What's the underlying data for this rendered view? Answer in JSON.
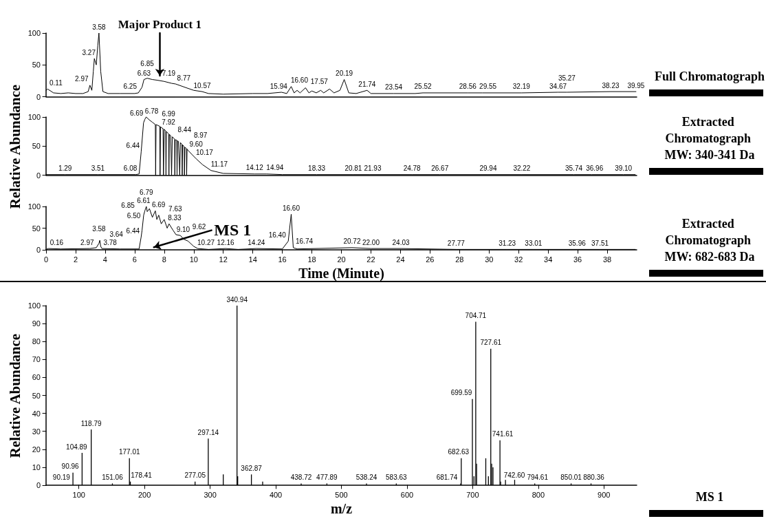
{
  "chart_data": [
    {
      "type": "line",
      "color": "#000000",
      "grid": false,
      "marker": "none",
      "line_style": "solid",
      "tick_labels": "y",
      "xlim": [
        0,
        40
      ],
      "ylim": [
        0,
        100
      ],
      "yticks": [
        0,
        50,
        100
      ],
      "x": [
        0,
        0.11,
        0.5,
        1,
        1.5,
        2,
        2.5,
        2.85,
        2.97,
        3.1,
        3.2,
        3.27,
        3.4,
        3.5,
        3.58,
        3.7,
        3.85,
        4.2,
        5,
        6,
        6.25,
        6.5,
        6.63,
        6.85,
        7.19,
        7.5,
        8,
        8.5,
        8.77,
        9.5,
        10,
        10.57,
        11,
        12,
        14,
        15,
        15.94,
        16.3,
        16.6,
        16.8,
        17,
        17.2,
        17.57,
        17.8,
        18,
        18.3,
        18.6,
        18.8,
        19.2,
        19.5,
        19.9,
        20.19,
        20.5,
        21,
        21.74,
        22,
        23.54,
        25,
        25.52,
        28.56,
        29.55,
        32.19,
        34.67,
        35.27,
        38.23,
        39.95
      ],
      "values": [
        10,
        12,
        6,
        5,
        6,
        5,
        5,
        8,
        18,
        10,
        40,
        60,
        50,
        80,
        100,
        40,
        8,
        5,
        5,
        5,
        6,
        15,
        27,
        29,
        27,
        26,
        24,
        21,
        20,
        14,
        10,
        8,
        5,
        4,
        5,
        5,
        7,
        5,
        16,
        6,
        10,
        6,
        14,
        6,
        9,
        6,
        10,
        6,
        12,
        6,
        10,
        27,
        6,
        5,
        10,
        5,
        5,
        5,
        6,
        6,
        6,
        6,
        7,
        7,
        8,
        8
      ],
      "annotations": [
        "Full Chromatograph",
        "Major Product 1",
        {
          "text": "0.11",
          "x": 0.11,
          "y": 12
        },
        {
          "text": "2.97",
          "x": 2.97,
          "y": 18
        },
        {
          "text": "3.27",
          "x": 3.27,
          "y": 60
        },
        {
          "text": "3.58",
          "x": 3.58,
          "y": 100
        },
        {
          "text": "6.25",
          "x": 6.25,
          "y": 6
        },
        {
          "text": "6.63",
          "x": 6.63,
          "y": 27
        },
        {
          "text": "6.85",
          "x": 6.85,
          "y": 29
        },
        {
          "text": "7.19",
          "x": 7.19,
          "y": 27
        },
        {
          "text": "8.77",
          "x": 8.77,
          "y": 20
        },
        {
          "text": "10.57",
          "x": 10.57,
          "y": 8
        },
        {
          "text": "15.94",
          "x": 15.94,
          "y": 7
        },
        {
          "text": "16.60",
          "x": 16.6,
          "y": 16
        },
        {
          "text": "17.57",
          "x": 17.57,
          "y": 14
        },
        {
          "text": "20.19",
          "x": 20.19,
          "y": 27
        },
        {
          "text": "21.74",
          "x": 21.74,
          "y": 10
        },
        {
          "text": "23.54",
          "x": 23.54,
          "y": 5
        },
        {
          "text": "25.52",
          "x": 25.52,
          "y": 6
        },
        {
          "text": "28.56",
          "x": 28.56,
          "y": 6
        },
        {
          "text": "29.55",
          "x": 29.55,
          "y": 6
        },
        {
          "text": "32.19",
          "x": 32.19,
          "y": 6
        },
        {
          "text": "34.67",
          "x": 34.67,
          "y": 7
        },
        {
          "text": "35.27",
          "x": 35.27,
          "y": 7
        },
        {
          "text": "38.23",
          "x": 38.23,
          "y": 8
        },
        {
          "text": "39.95",
          "x": 39.95,
          "y": 8
        }
      ]
    },
    {
      "type": "line",
      "ylabel": "Relative Abundance",
      "color": "#000000",
      "grid": false,
      "marker": "none",
      "line_style": "solid",
      "tick_labels": "y",
      "xlim": [
        0,
        40
      ],
      "ylim": [
        0,
        100
      ],
      "yticks": [
        0,
        50,
        100
      ],
      "x": [
        0,
        1.29,
        3.51,
        6.08,
        6.3,
        6.44,
        6.6,
        6.69,
        6.78,
        6.99,
        7.2,
        7.4,
        7.42,
        7.45,
        7.7,
        7.72,
        7.75,
        7.92,
        7.95,
        8.0,
        8.1,
        8.12,
        8.15,
        8.3,
        8.32,
        8.35,
        8.44,
        8.5,
        8.55,
        8.7,
        8.72,
        8.75,
        8.85,
        8.87,
        8.9,
        8.97,
        9.05,
        9.1,
        9.2,
        9.22,
        9.25,
        9.35,
        9.37,
        9.4,
        9.5,
        9.52,
        9.55,
        9.6,
        9.9,
        10.17,
        10.6,
        11.17,
        12,
        14.12,
        14.94,
        16,
        18.33,
        20.81,
        21.93,
        24.78,
        26.67,
        29.94,
        32.22,
        35.74,
        36.96,
        39.1,
        39.9
      ],
      "values": [
        1,
        1,
        1,
        1,
        2,
        40,
        90,
        96,
        100,
        95,
        91,
        87,
        0,
        87,
        84,
        0,
        83,
        80,
        0,
        79,
        76,
        0,
        75,
        71,
        0,
        70,
        68,
        0,
        66,
        62,
        0,
        61,
        60,
        0,
        59,
        58,
        0,
        56,
        53,
        0,
        52,
        49,
        0,
        48,
        46,
        0,
        45,
        43,
        35,
        28,
        18,
        8,
        3,
        2,
        2,
        1,
        1,
        1,
        1,
        1,
        1,
        1,
        1,
        1,
        1,
        1,
        1
      ],
      "annotations": [
        "Extracted Chromatograph MW: 340-341 Da",
        {
          "text": "1.29",
          "x": 1.29,
          "y": 1
        },
        {
          "text": "3.51",
          "x": 3.51,
          "y": 1
        },
        {
          "text": "6.08",
          "x": 6.08,
          "y": 1
        },
        {
          "text": "6.44",
          "x": 6.44,
          "y": 40
        },
        {
          "text": "6.69",
          "x": 6.69,
          "y": 96
        },
        {
          "text": "6.78",
          "x": 6.78,
          "y": 100
        },
        {
          "text": "6.99",
          "x": 6.99,
          "y": 95
        },
        {
          "text": "7.92",
          "x": 7.92,
          "y": 80
        },
        {
          "text": "8.44",
          "x": 8.44,
          "y": 68
        },
        {
          "text": "8.97",
          "x": 8.97,
          "y": 58
        },
        {
          "text": "9.60",
          "x": 9.6,
          "y": 43
        },
        {
          "text": "10.17",
          "x": 10.17,
          "y": 28
        },
        {
          "text": "11.17",
          "x": 11.17,
          "y": 8
        },
        {
          "text": "14.12",
          "x": 14.12,
          "y": 2
        },
        {
          "text": "14.94",
          "x": 14.94,
          "y": 2
        },
        {
          "text": "18.33",
          "x": 18.33,
          "y": 1
        },
        {
          "text": "20.81",
          "x": 20.81,
          "y": 1
        },
        {
          "text": "21.93",
          "x": 21.93,
          "y": 1
        },
        {
          "text": "24.78",
          "x": 24.78,
          "y": 1
        },
        {
          "text": "26.67",
          "x": 26.67,
          "y": 1
        },
        {
          "text": "29.94",
          "x": 29.94,
          "y": 1
        },
        {
          "text": "32.22",
          "x": 32.22,
          "y": 1
        },
        {
          "text": "35.74",
          "x": 35.74,
          "y": 1
        },
        {
          "text": "36.96",
          "x": 36.96,
          "y": 1
        },
        {
          "text": "39.10",
          "x": 39.1,
          "y": 1
        }
      ]
    },
    {
      "type": "line",
      "xlabel": "Time (Minute)",
      "color": "#000000",
      "grid": false,
      "marker": "none",
      "line_style": "solid",
      "xlim": [
        0,
        40
      ],
      "xticks": [
        0,
        2,
        4,
        6,
        8,
        10,
        12,
        14,
        16,
        18,
        20,
        22,
        24,
        26,
        28,
        30,
        32,
        34,
        36,
        38
      ],
      "ylim": [
        0,
        100
      ],
      "yticks": [
        0,
        50,
        100
      ],
      "x": [
        0,
        0.16,
        1,
        2.97,
        3.4,
        3.58,
        3.64,
        3.7,
        3.78,
        5,
        6.3,
        6.44,
        6.5,
        6.61,
        6.69,
        6.79,
        6.85,
        7.0,
        7.2,
        7.4,
        7.5,
        7.63,
        7.8,
        8.0,
        8.2,
        8.33,
        8.6,
        8.8,
        9.1,
        9.3,
        9.62,
        10.0,
        10.27,
        11,
        12.16,
        13,
        14.24,
        16,
        16.4,
        16.6,
        16.74,
        17,
        20.72,
        22,
        24.03,
        27.77,
        31.23,
        33.01,
        35.96,
        37.51,
        39.9
      ],
      "values": [
        1,
        3,
        2,
        3,
        5,
        15,
        22,
        8,
        3,
        2,
        2,
        30,
        45,
        80,
        90,
        100,
        88,
        95,
        75,
        90,
        70,
        80,
        60,
        70,
        50,
        60,
        45,
        35,
        33,
        25,
        20,
        8,
        3,
        1,
        3,
        1,
        3,
        2,
        20,
        82,
        5,
        2,
        5,
        3,
        3,
        1,
        1,
        1,
        1,
        1,
        1
      ],
      "annotations": [
        "Extracted Chromatograph MW: 682-683 Da",
        "MS 1",
        {
          "text": "0.16",
          "x": 0.16,
          "y": 3
        },
        {
          "text": "2.97",
          "x": 2.97,
          "y": 3
        },
        {
          "text": "3.58",
          "x": 3.58,
          "y": 15
        },
        {
          "text": "3.64",
          "x": 3.64,
          "y": 22
        },
        {
          "text": "3.78",
          "x": 3.78,
          "y": 3
        },
        {
          "text": "6.44",
          "x": 6.44,
          "y": 30
        },
        {
          "text": "6.50",
          "x": 6.5,
          "y": 45
        },
        {
          "text": "6.61",
          "x": 6.61,
          "y": 80
        },
        {
          "text": "6.69",
          "x": 6.69,
          "y": 90
        },
        {
          "text": "6.79",
          "x": 6.79,
          "y": 100
        },
        {
          "text": "6.85",
          "x": 6.85,
          "y": 88
        },
        {
          "text": "7.63",
          "x": 7.63,
          "y": 80
        },
        {
          "text": "8.33",
          "x": 8.33,
          "y": 60
        },
        {
          "text": "9.10",
          "x": 9.1,
          "y": 33
        },
        {
          "text": "9.62",
          "x": 9.62,
          "y": 20
        },
        {
          "text": "10.27",
          "x": 10.27,
          "y": 3
        },
        {
          "text": "12.16",
          "x": 12.16,
          "y": 3
        },
        {
          "text": "14.24",
          "x": 14.24,
          "y": 3
        },
        {
          "text": "16.40",
          "x": 16.4,
          "y": 20
        },
        {
          "text": "16.60",
          "x": 16.6,
          "y": 82
        },
        {
          "text": "16.74",
          "x": 16.74,
          "y": 5
        },
        {
          "text": "20.72",
          "x": 20.72,
          "y": 5
        },
        {
          "text": "22.00",
          "x": 22,
          "y": 3
        },
        {
          "text": "24.03",
          "x": 24.03,
          "y": 3
        },
        {
          "text": "27.77",
          "x": 27.77,
          "y": 1
        },
        {
          "text": "31.23",
          "x": 31.23,
          "y": 1
        },
        {
          "text": "33.01",
          "x": 33.01,
          "y": 1
        },
        {
          "text": "35.96",
          "x": 35.96,
          "y": 1
        },
        {
          "text": "37.51",
          "x": 37.51,
          "y": 1
        }
      ]
    },
    {
      "type": "bar",
      "xlabel": "m/z",
      "ylabel": "Relative Abundance",
      "color": "#000000",
      "grid": false,
      "xlim": [
        50,
        950
      ],
      "xticks": [
        100,
        200,
        300,
        400,
        500,
        600,
        700,
        800,
        900
      ],
      "ylim": [
        0,
        100
      ],
      "yticks": [
        0,
        10,
        20,
        30,
        40,
        50,
        60,
        70,
        80,
        90,
        100
      ],
      "x": [
        90.96,
        104.89,
        118.79,
        151.06,
        177.01,
        178.41,
        277.05,
        297.14,
        320,
        340.94,
        342,
        362.87,
        380,
        438.72,
        477.89,
        538.24,
        583.63,
        681.74,
        682.63,
        699.59,
        702,
        704.71,
        706,
        720,
        724,
        727.61,
        729,
        731,
        741.61,
        742.6,
        750,
        764,
        794.61,
        850.01,
        880.36
      ],
      "values": [
        7,
        18,
        31,
        1,
        15,
        2,
        2,
        26,
        6,
        100,
        5,
        6,
        2,
        1,
        1,
        1,
        1,
        1,
        15,
        48,
        5,
        91,
        12,
        15,
        5,
        76,
        12,
        10,
        25,
        2,
        3,
        3,
        1,
        1,
        1
      ],
      "annotations": [
        "MS 1",
        {
          "text": "90.19",
          "x": 90.19,
          "y": 1
        },
        {
          "text": "90.96",
          "x": 90.96,
          "y": 7
        },
        {
          "text": "104.89",
          "x": 104.89,
          "y": 18
        },
        {
          "text": "118.79",
          "x": 118.79,
          "y": 31
        },
        {
          "text": "151.06",
          "x": 151.06,
          "y": 1
        },
        {
          "text": "177.01",
          "x": 177.01,
          "y": 15
        },
        {
          "text": "178.41",
          "x": 178.41,
          "y": 2
        },
        {
          "text": "277.05",
          "x": 277.05,
          "y": 2
        },
        {
          "text": "297.14",
          "x": 297.14,
          "y": 26
        },
        {
          "text": "340.94",
          "x": 340.94,
          "y": 100
        },
        {
          "text": "362.87",
          "x": 362.87,
          "y": 6
        },
        {
          "text": "438.72",
          "x": 438.72,
          "y": 1
        },
        {
          "text": "477.89",
          "x": 477.89,
          "y": 1
        },
        {
          "text": "538.24",
          "x": 538.24,
          "y": 1
        },
        {
          "text": "583.63",
          "x": 583.63,
          "y": 1
        },
        {
          "text": "681.74",
          "x": 681.74,
          "y": 1
        },
        {
          "text": "682.63",
          "x": 682.63,
          "y": 15
        },
        {
          "text": "699.59",
          "x": 699.59,
          "y": 48
        },
        {
          "text": "704.71",
          "x": 704.71,
          "y": 91
        },
        {
          "text": "727.61",
          "x": 727.61,
          "y": 76
        },
        {
          "text": "741.61",
          "x": 741.61,
          "y": 25
        },
        {
          "text": "742.60",
          "x": 742.6,
          "y": 2
        },
        {
          "text": "794.61",
          "x": 794.61,
          "y": 1
        },
        {
          "text": "850.01",
          "x": 850.01,
          "y": 1
        },
        {
          "text": "880.36",
          "x": 880.36,
          "y": 1
        }
      ]
    }
  ]
}
